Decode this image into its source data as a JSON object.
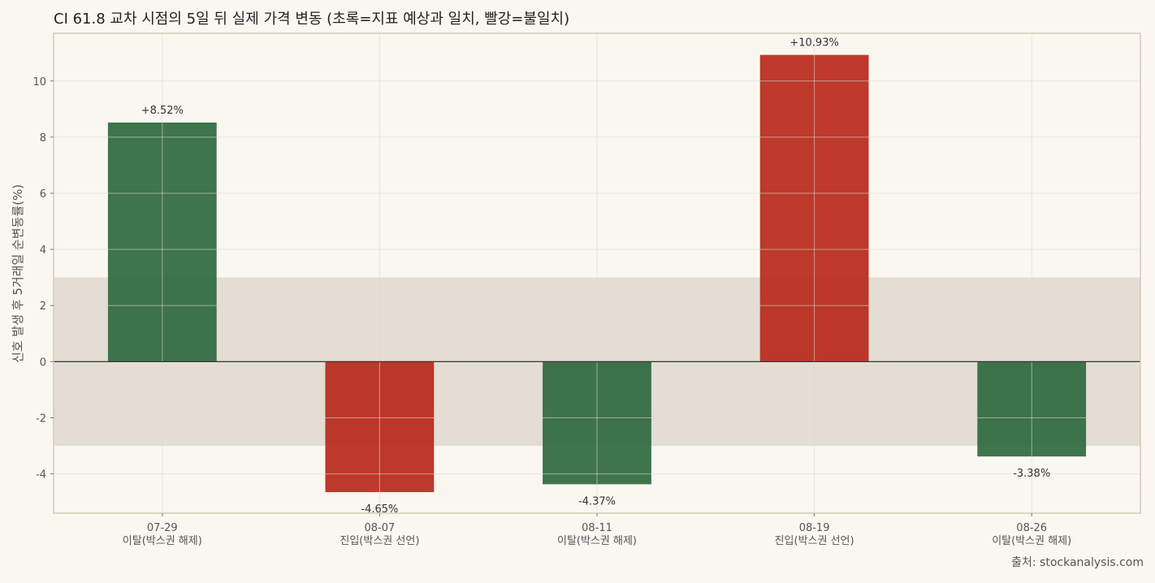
{
  "chart_data": {
    "type": "bar",
    "title": "CI 61.8 교차 시점의 5일 뒤 실제 가격 변동 (초록=지표 예상과 일치, 빨강=불일치)",
    "xlabel": "",
    "ylabel": "신호 발생 후 5거래일 순변동률(%)",
    "ylim": [
      -5.4,
      11.7
    ],
    "yticks": [
      -4,
      -2,
      0,
      2,
      4,
      6,
      8,
      10
    ],
    "ytick_labels": [
      "-4",
      "-2",
      "0",
      "2",
      "4",
      "6",
      "8",
      "10"
    ],
    "grid": true,
    "neutral_band": [
      -3,
      3
    ],
    "categories": [
      {
        "date": "07-29",
        "signal": "이탈(박스권 해제)"
      },
      {
        "date": "08-07",
        "signal": "진입(박스권 선언)"
      },
      {
        "date": "08-11",
        "signal": "이탈(박스권 해제)"
      },
      {
        "date": "08-19",
        "signal": "진입(박스권 선언)"
      },
      {
        "date": "08-26",
        "signal": "이탈(박스권 해제)"
      }
    ],
    "values": [
      8.52,
      -4.65,
      -4.37,
      10.93,
      -3.38
    ],
    "value_labels": [
      "+8.52%",
      "-4.65%",
      "-4.37%",
      "+10.93%",
      "-3.38%"
    ],
    "match": [
      true,
      false,
      true,
      false,
      true
    ],
    "colors": {
      "match": "#2f6b41",
      "mismatch": "#b82a1c",
      "band": "#e3ddd4",
      "background": "#faf7f0",
      "grid": "#ddd8cc",
      "axis": "#d2ccb8",
      "zero_line": "#333333",
      "text": "#333333",
      "tick_text": "#555555"
    },
    "source": "출처: stockanalysis.com"
  }
}
